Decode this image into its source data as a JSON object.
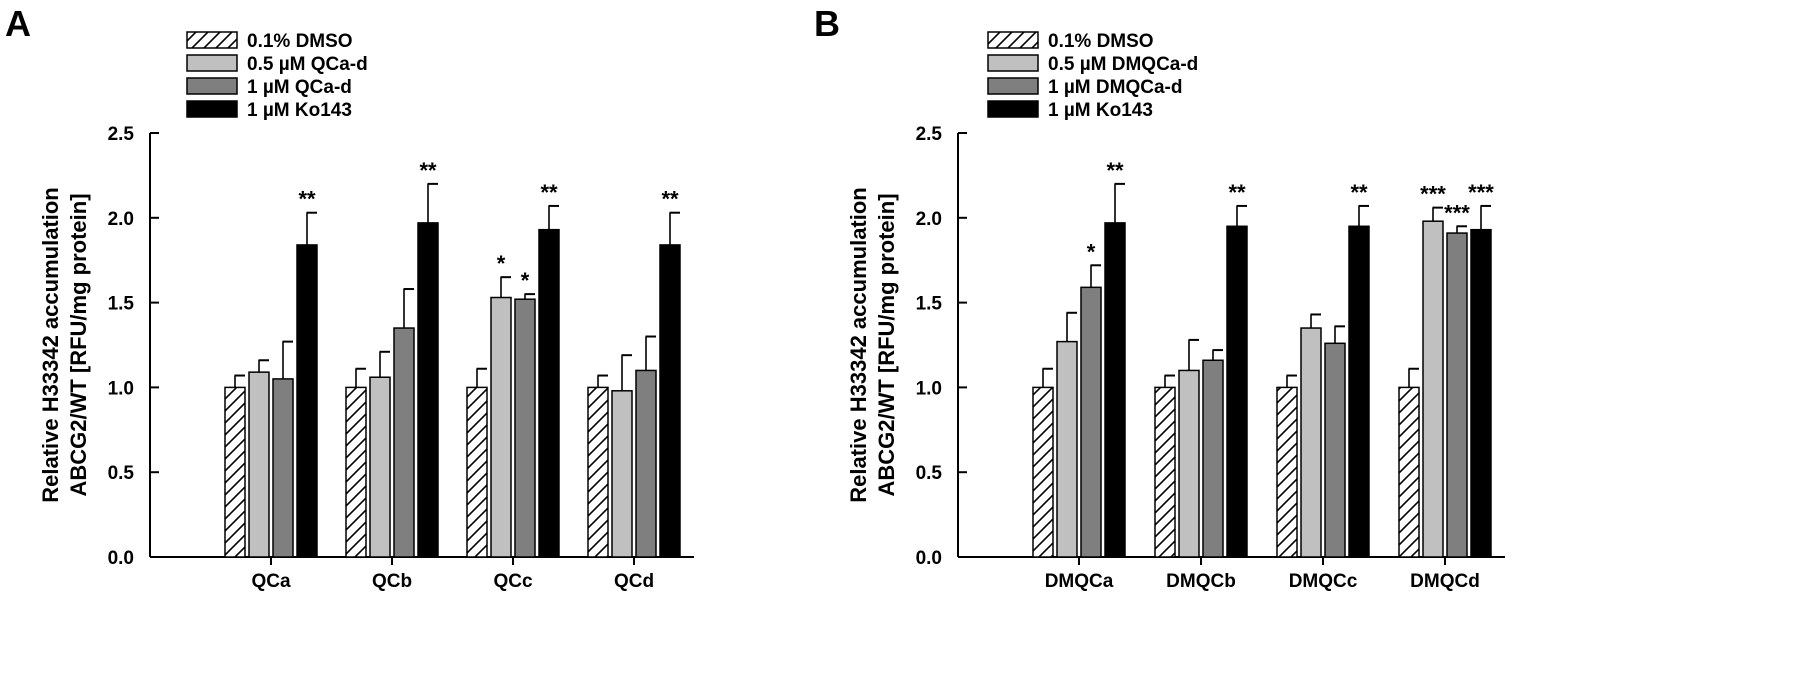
{
  "colors": {
    "dmso_fill": "#ffffff",
    "low_dose_fill": "#c0c0c0",
    "high_dose_fill": "#7f7f7f",
    "ko143_fill": "#000000",
    "axis": "#000000"
  },
  "chart_data": [
    {
      "panel": "A",
      "type": "bar",
      "ylabel": [
        "Relative H33342 accumulation",
        "ABCG2/WT [RFU/mg protein]"
      ],
      "ylim": [
        0,
        2.5
      ],
      "yticks": [
        "0.0",
        "0.5",
        "1.0",
        "1.5",
        "2.0",
        "2.5"
      ],
      "grid": false,
      "legend_position": "top-left",
      "categories": [
        "QCa",
        "QCb",
        "QCc",
        "QCd"
      ],
      "series": [
        {
          "name": "0.1% DMSO",
          "pattern": "hatched",
          "values": [
            1.0,
            1.0,
            1.0,
            1.0
          ],
          "errors": [
            0.07,
            0.11,
            0.11,
            0.07
          ],
          "significance": [
            "",
            "",
            "",
            ""
          ]
        },
        {
          "name": "0.5 µM QCa-d",
          "pattern": "light-gray",
          "values": [
            1.09,
            1.06,
            1.53,
            0.98
          ],
          "errors": [
            0.07,
            0.15,
            0.12,
            0.21
          ],
          "significance": [
            "",
            "",
            "*",
            ""
          ]
        },
        {
          "name": "1 µM QCa-d",
          "pattern": "dark-gray",
          "values": [
            1.05,
            1.35,
            1.52,
            1.1
          ],
          "errors": [
            0.22,
            0.23,
            0.03,
            0.2
          ],
          "significance": [
            "",
            "",
            "*",
            ""
          ]
        },
        {
          "name": "1 µM Ko143",
          "pattern": "black",
          "values": [
            1.84,
            1.97,
            1.93,
            1.84
          ],
          "errors": [
            0.19,
            0.23,
            0.14,
            0.19
          ],
          "significance": [
            "**",
            "**",
            "**",
            "**"
          ]
        }
      ]
    },
    {
      "panel": "B",
      "type": "bar",
      "ylabel": [
        "Relative H33342 accumulation",
        "ABCG2/WT [RFU/mg protein]"
      ],
      "ylim": [
        0,
        2.5
      ],
      "yticks": [
        "0.0",
        "0.5",
        "1.0",
        "1.5",
        "2.0",
        "2.5"
      ],
      "grid": false,
      "legend_position": "top-left",
      "categories": [
        "DMQCa",
        "DMQCb",
        "DMQCc",
        "DMQCd"
      ],
      "series": [
        {
          "name": "0.1% DMSO",
          "pattern": "hatched",
          "values": [
            1.0,
            1.0,
            1.0,
            1.0
          ],
          "errors": [
            0.11,
            0.07,
            0.07,
            0.11
          ],
          "significance": [
            "",
            "",
            "",
            ""
          ]
        },
        {
          "name": "0.5 µM DMQCa-d",
          "pattern": "light-gray",
          "values": [
            1.27,
            1.1,
            1.35,
            1.98
          ],
          "errors": [
            0.17,
            0.18,
            0.08,
            0.08
          ],
          "significance": [
            "",
            "",
            "",
            "***"
          ]
        },
        {
          "name": "1 µM DMQCa-d",
          "pattern": "dark-gray",
          "values": [
            1.59,
            1.16,
            1.26,
            1.91
          ],
          "errors": [
            0.13,
            0.06,
            0.1,
            0.04
          ],
          "significance": [
            "*",
            "",
            "",
            "***"
          ]
        },
        {
          "name": "1 µM Ko143",
          "pattern": "black",
          "values": [
            1.97,
            1.95,
            1.95,
            1.93
          ],
          "errors": [
            0.23,
            0.12,
            0.12,
            0.14
          ],
          "significance": [
            "**",
            "**",
            "**",
            "***"
          ]
        }
      ]
    }
  ]
}
